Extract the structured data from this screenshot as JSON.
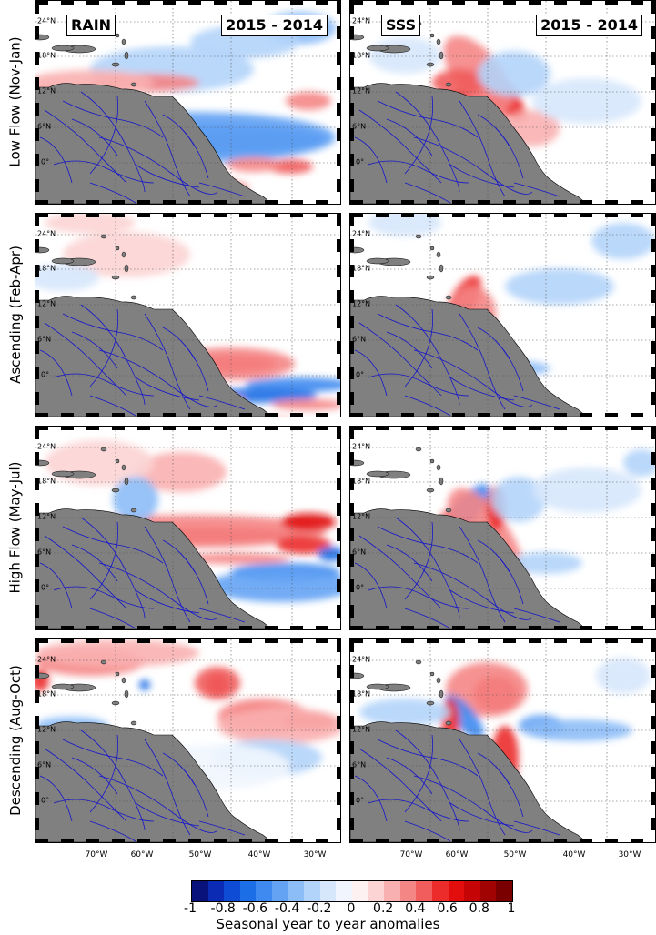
{
  "rows": [
    {
      "label": "Low Flow (Nov-Jan)"
    },
    {
      "label": "Ascending (Feb-Apr)"
    },
    {
      "label": "High Flow (May-Jul)"
    },
    {
      "label": "Descending (Aug-Oct)"
    }
  ],
  "columns": [
    {
      "variable": "RAIN",
      "period": "2015 - 2014"
    },
    {
      "variable": "SSS",
      "period": "2015 - 2014"
    }
  ],
  "lat_labels": [
    "24°N",
    "18°N",
    "12°N",
    "6°N",
    "0°"
  ],
  "lon_labels": [
    "70°W",
    "60°W",
    "50°W",
    "40°W",
    "30°W"
  ],
  "colorbar": {
    "ticks": [
      "-1",
      "-0.8",
      "-0.6",
      "-0.4",
      "-0.2",
      "0",
      "0.2",
      "0.4",
      "0.6",
      "0.8",
      "1"
    ],
    "title": "Seasonal year to year anomalies",
    "colors": [
      "#08127a",
      "#0b2bb4",
      "#0f4cd6",
      "#1c6ee6",
      "#3e8af0",
      "#64a3f4",
      "#8cbdf7",
      "#b3d4fa",
      "#d6e7fc",
      "#f1f6fe",
      "#fef1f1",
      "#fcd4d4",
      "#f9b0b0",
      "#f58686",
      "#f15c5c",
      "#ec2b2b",
      "#e20d0d",
      "#c50505",
      "#a10303",
      "#7a0000"
    ]
  },
  "land_color": "#808080",
  "river_color": "#1515cc"
}
